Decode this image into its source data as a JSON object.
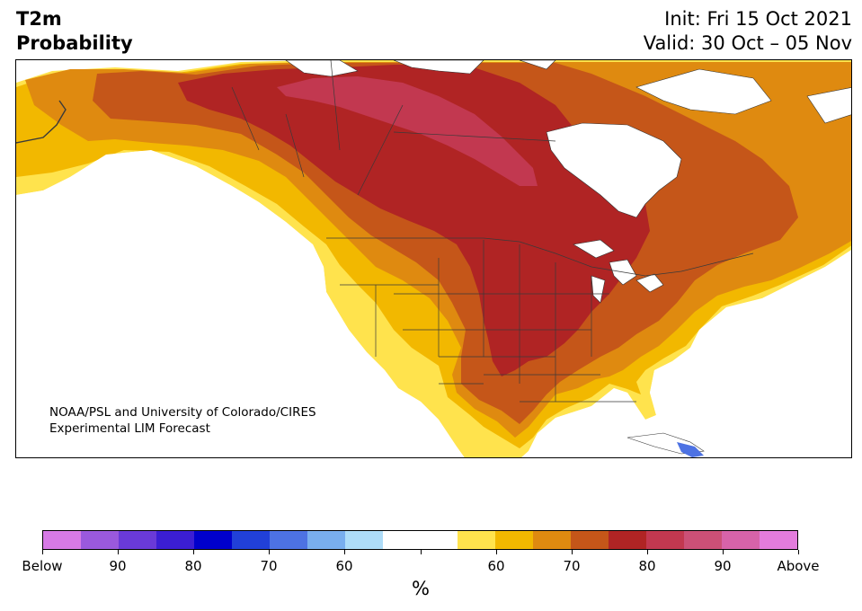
{
  "title": {
    "line1": "T2m",
    "line2": "Probability"
  },
  "dates": {
    "init": "Init: Fri 15 Oct 2021",
    "valid": "Valid: 30 Oct – 05 Nov"
  },
  "credit": {
    "line1": "NOAA/PSL and University of Colorado/CIRES",
    "line2": "Experimental LIM Forecast"
  },
  "colorbar": {
    "colors": [
      "#d77ae6",
      "#9a59dd",
      "#6a3ad8",
      "#3b1ed4",
      "#0000cc",
      "#2140d8",
      "#4d72e3",
      "#79aeee",
      "#aedcf8",
      "#ffffff",
      "#ffffff",
      "#ffe34d",
      "#f2b800",
      "#df8a10",
      "#c55619",
      "#b02424",
      "#c23850",
      "#cb5077",
      "#d763a9",
      "#e37cdc"
    ],
    "tick_labels": [
      "Below",
      "90",
      "80",
      "70",
      "60",
      "",
      "60",
      "70",
      "80",
      "90",
      "Above"
    ],
    "unit": "%"
  }
}
